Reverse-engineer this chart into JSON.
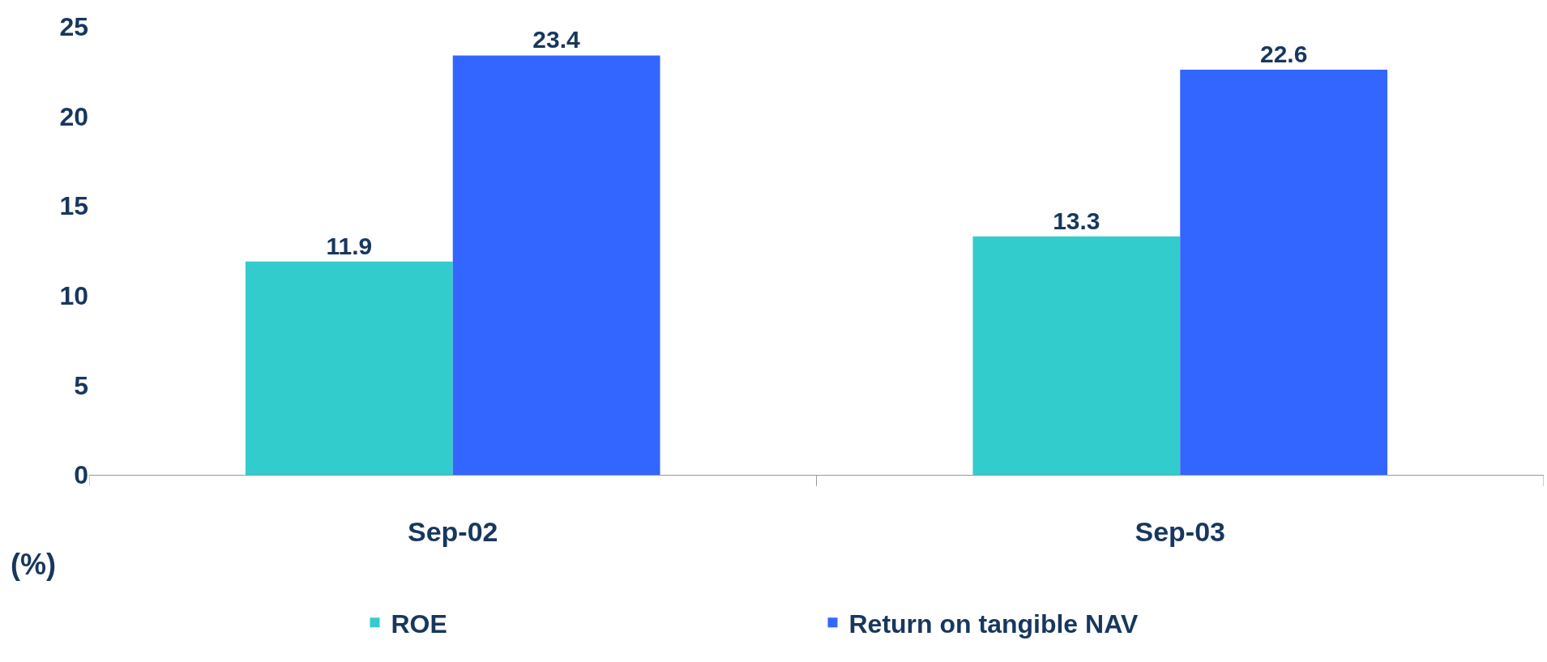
{
  "chart_data": {
    "type": "bar",
    "categories": [
      "Sep-02",
      "Sep-03"
    ],
    "ylabel": "(%)",
    "series": [
      {
        "name": "ROE",
        "color": "#33cccc",
        "values": [
          11.9,
          13.3
        ]
      },
      {
        "name": "Return on tangible NAV",
        "color": "#3366ff",
        "values": [
          23.4,
          22.6
        ]
      }
    ],
    "ylim": [
      0,
      25
    ],
    "yticks": [
      0,
      5,
      10,
      15,
      20,
      25
    ],
    "data_labels": true,
    "legend": "bottom"
  }
}
